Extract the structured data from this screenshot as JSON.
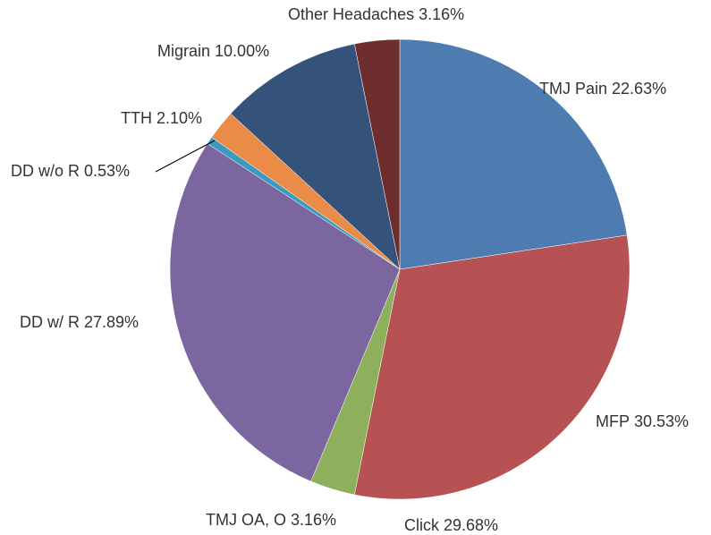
{
  "chart_data": {
    "type": "pie",
    "categories": [
      "TMJ Pain",
      "MFP",
      "TMJ OA, O",
      "DD w/ R",
      "DD w/o R",
      "TTH",
      "Migrain",
      "Other Headaches"
    ],
    "values": [
      22.63,
      30.53,
      3.16,
      27.89,
      0.53,
      2.1,
      10.0,
      3.16
    ],
    "value_labels": [
      "22.63%",
      "30.53%",
      "3.16%",
      "27.89%",
      "0.53%",
      "2.10%",
      "10.00%",
      "3.16%"
    ],
    "colors": [
      "#4e7bb0",
      "#b65254",
      "#8eaf5c",
      "#7b66a0",
      "#3a9bbf",
      "#ea8c48",
      "#35527a",
      "#6e2e2e"
    ],
    "annotations": [
      "Click 29.68%"
    ]
  }
}
